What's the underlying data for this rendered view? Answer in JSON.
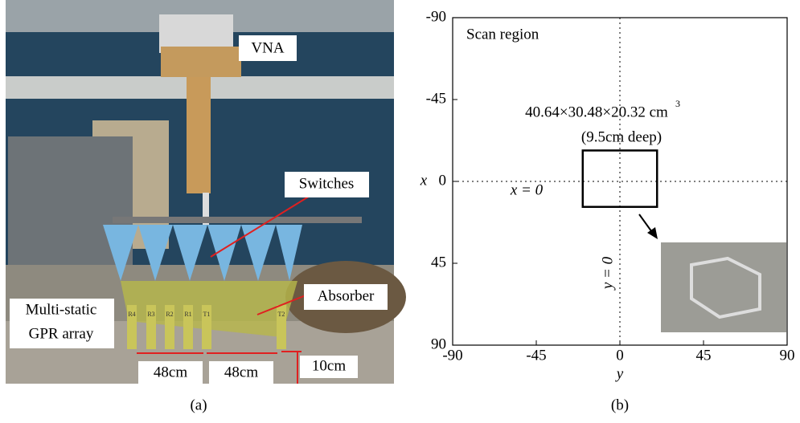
{
  "panel_a": {
    "caption": "(a)",
    "labels": {
      "vna": "VNA",
      "switches": "Switches",
      "absorber": "Absorber",
      "array_line1": "Multi-static",
      "array_line2": "GPR array",
      "spacing1": "48cm",
      "spacing2": "48cm",
      "height": "10cm"
    },
    "antennas": [
      "R4",
      "R3",
      "R2",
      "R1",
      "T1",
      "T2"
    ]
  },
  "panel_b": {
    "caption": "(b)",
    "title": "Scan region",
    "xlabel": "y",
    "ylabel": "x",
    "xlim": [
      -90,
      90
    ],
    "ylim": [
      -90,
      90
    ],
    "xticks": [
      -90,
      -45,
      0,
      45,
      90
    ],
    "yticks": [
      -90,
      -45,
      0,
      45,
      90
    ],
    "y_inverted": true,
    "dimension": "40.64×30.48×20.32 cm",
    "dimension_superscript": "3",
    "depth": "(9.5cm deep)",
    "x_zero_label": "x = 0",
    "y_zero_label": "y = 0",
    "target_box": {
      "y": [
        -20,
        20
      ],
      "x": [
        -17,
        14
      ]
    }
  }
}
